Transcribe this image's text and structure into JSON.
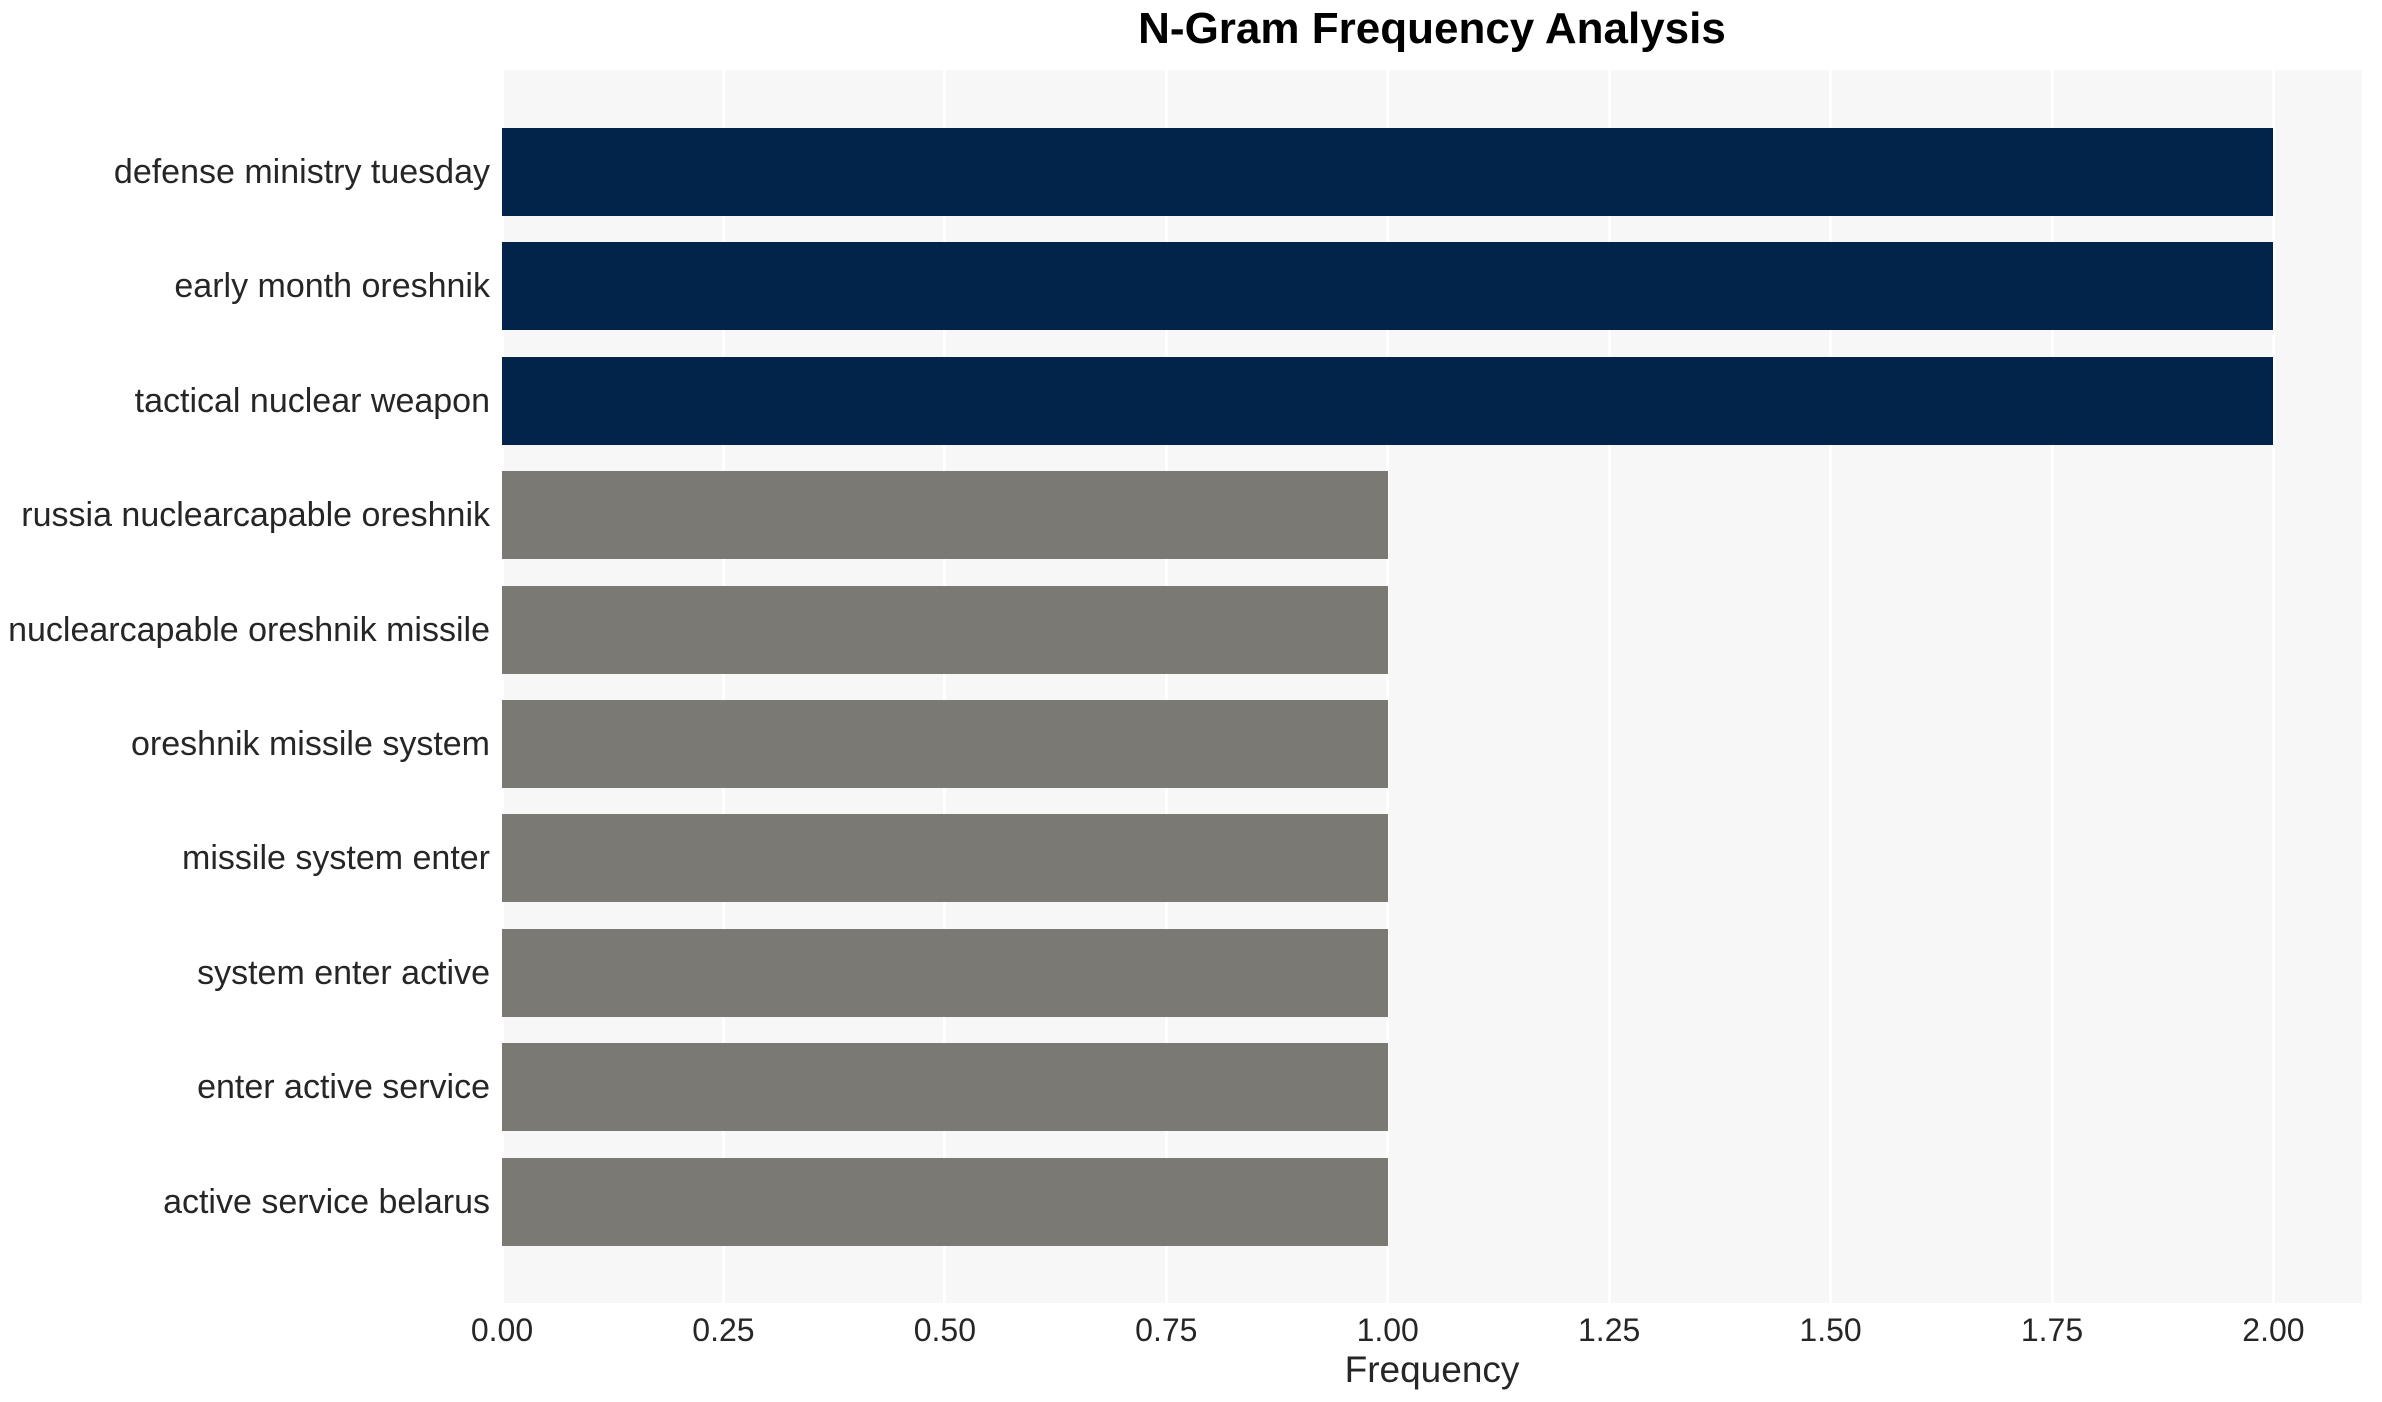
{
  "chart_data": {
    "type": "bar",
    "orientation": "horizontal",
    "title": "N-Gram Frequency Analysis",
    "xlabel": "Frequency",
    "ylabel": "",
    "categories": [
      "defense ministry tuesday",
      "early month oreshnik",
      "tactical nuclear weapon",
      "russia nuclearcapable oreshnik",
      "nuclearcapable oreshnik missile",
      "oreshnik missile system",
      "missile system enter",
      "system enter active",
      "enter active service",
      "active service belarus"
    ],
    "values": [
      2,
      2,
      2,
      1,
      1,
      1,
      1,
      1,
      1,
      1
    ],
    "bar_colors": [
      "#02234a",
      "#02234a",
      "#02234a",
      "#7b7974",
      "#7b7974",
      "#7b7974",
      "#7b7974",
      "#7b7974",
      "#7b7974",
      "#7b7974"
    ],
    "xlim": [
      0,
      2.1
    ],
    "xticks": [
      0,
      0.25,
      0.5,
      0.75,
      1.0,
      1.25,
      1.5,
      1.75,
      2.0
    ],
    "xtick_labels": [
      "0.00",
      "0.25",
      "0.50",
      "0.75",
      "1.00",
      "1.25",
      "1.50",
      "1.75",
      "2.00"
    ],
    "grid": "vertical-white-lines",
    "legend": "none",
    "colors": {
      "high_value_bar": "#02234a",
      "low_value_bar": "#7b7974",
      "plot_background": "#f7f7f7",
      "gridline": "#ffffff",
      "tick_text": "#262626",
      "title_text": "#000000"
    }
  }
}
